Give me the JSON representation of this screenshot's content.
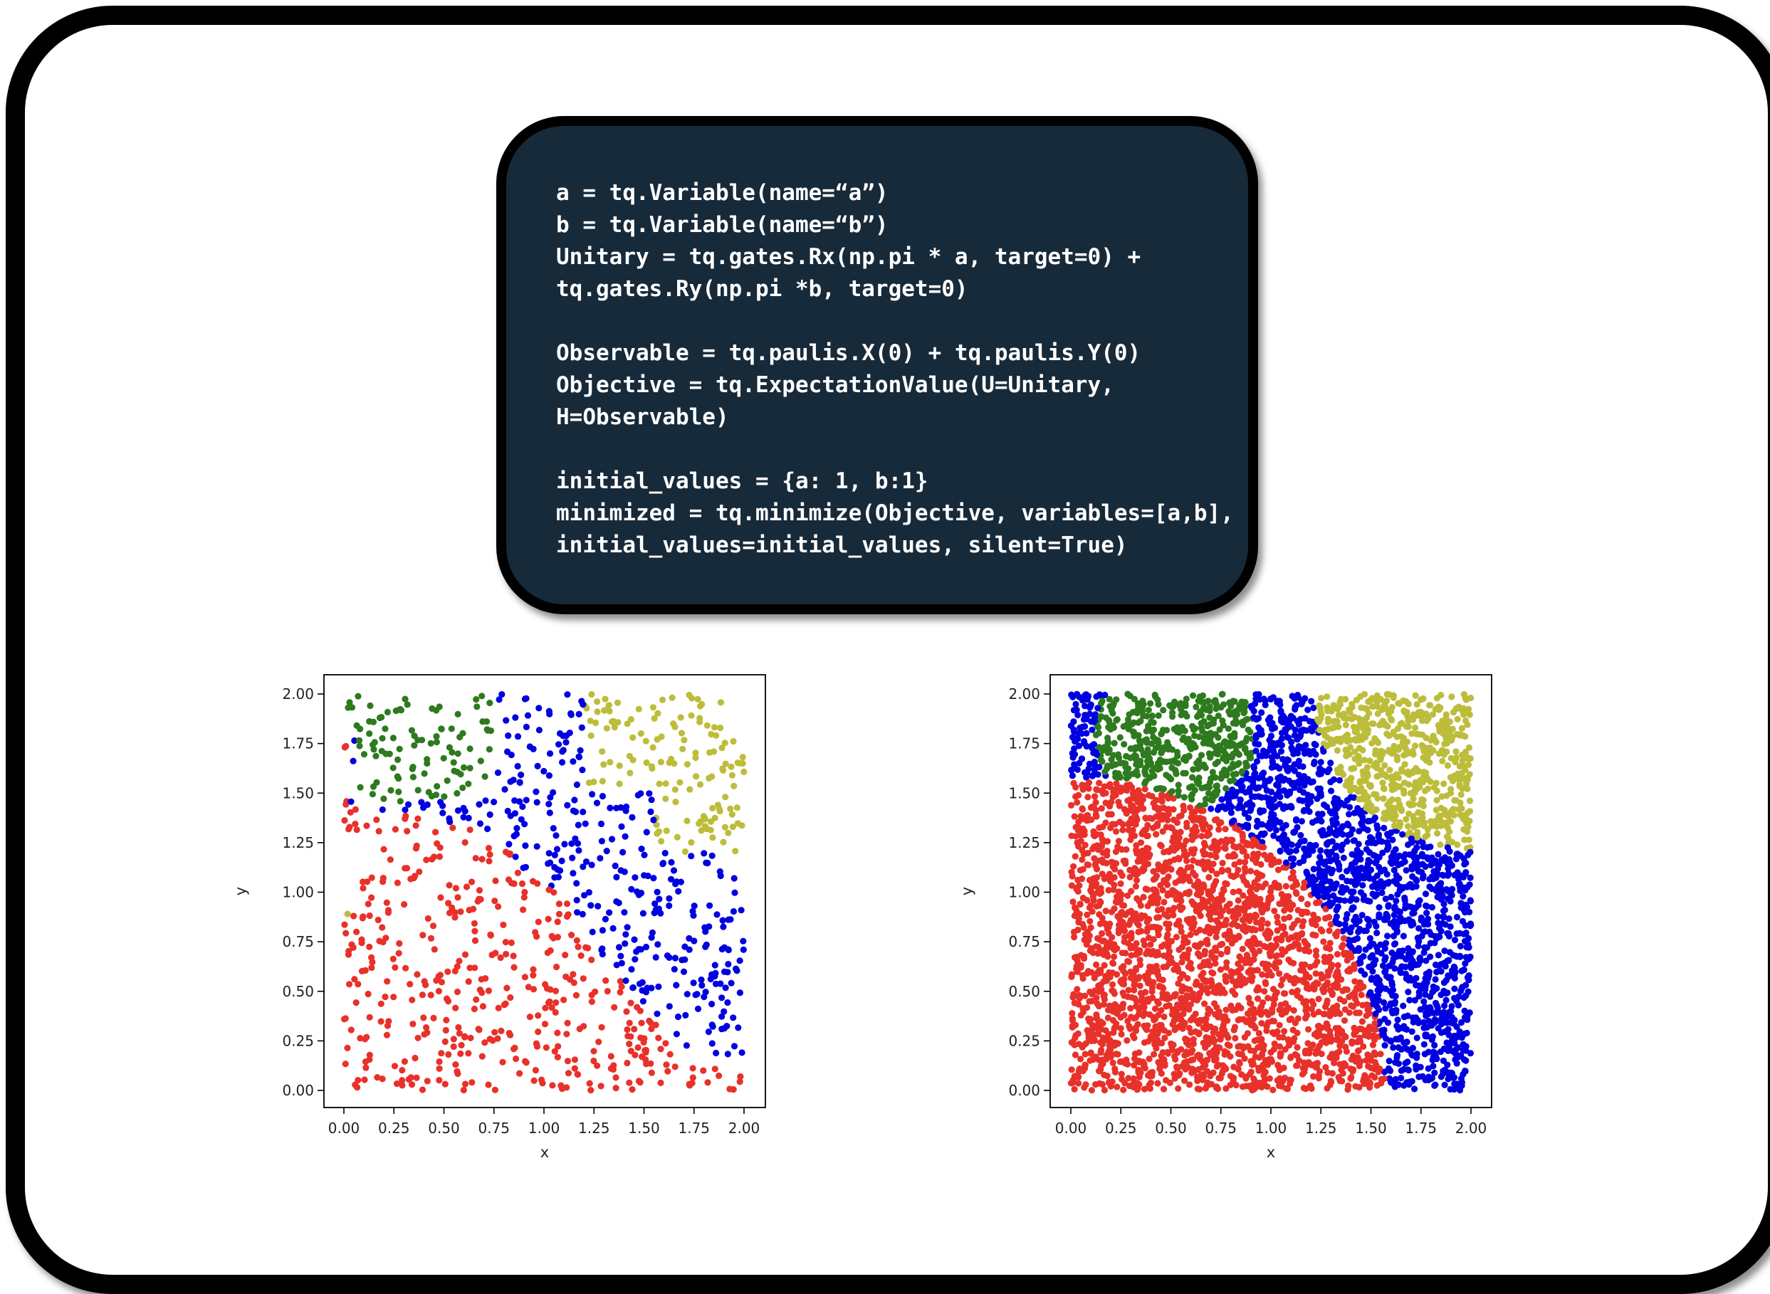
{
  "code": {
    "lines": [
      "a = tq.Variable(name=“a”)",
      "b = tq.Variable(name=“b”)",
      "Unitary = tq.gates.Rx(np.pi * a, target=0) +",
      "tq.gates.Ry(np.pi *b, target=0)",
      "",
      "Observable = tq.paulis.X(0) + tq.paulis.Y(0)",
      "Objective = tq.ExpectationValue(U=Unitary,",
      "H=Observable)",
      "",
      "initial_values = {a: 1, b:1}",
      "minimized = tq.minimize(Objective, variables=[a,b],",
      "initial_values=initial_values, silent=True)"
    ]
  },
  "colors": {
    "red": "#e8312a",
    "blue": "#0000e0",
    "green": "#2e7a1e",
    "olive": "#bdbd3c",
    "code_background": "#172a3a"
  },
  "chart_data": [
    {
      "type": "scatter",
      "xlabel": "x",
      "ylabel": "y",
      "xlim": [
        0,
        2
      ],
      "ylim": [
        0,
        2
      ],
      "xticks": [
        "0.00",
        "0.25",
        "0.50",
        "0.75",
        "1.00",
        "1.25",
        "1.50",
        "1.75",
        "2.00"
      ],
      "yticks": [
        "0.00",
        "0.25",
        "0.50",
        "0.75",
        "1.00",
        "1.25",
        "1.50",
        "1.75",
        "2.00"
      ],
      "point_count": 1000,
      "classes": [
        {
          "color": "red",
          "region": "lower-left, roughly x+y<2 bounded by boundary through (0.75,1.30),(1.10,1.00),(1.25,0.75),(1.50,0.35)"
        },
        {
          "color": "green",
          "region": "top-left, x 0.00–0.75, y 1.45–2.00"
        },
        {
          "color": "blue",
          "region": "central band to right edge"
        },
        {
          "color": "olive",
          "region": "top-right, x>1.20, y>1.20 (plus a few points at x≈0, y≈0.95)"
        }
      ]
    },
    {
      "type": "scatter",
      "xlabel": "x",
      "ylabel": "y",
      "xlim": [
        0,
        2
      ],
      "ylim": [
        0,
        2
      ],
      "xticks": [
        "0.00",
        "0.25",
        "0.50",
        "0.75",
        "1.00",
        "1.25",
        "1.50",
        "1.75",
        "2.00"
      ],
      "yticks": [
        "0.00",
        "0.25",
        "0.50",
        "0.75",
        "1.00",
        "1.25",
        "1.50",
        "1.75",
        "2.00"
      ],
      "point_count": 5000,
      "classes": [
        {
          "color": "red",
          "region": "quarter disc centered at origin, radius ≈1.57"
        },
        {
          "color": "green",
          "region": "disc centered (0.52, 1.80), radius ≈0.40"
        },
        {
          "color": "olive",
          "region": "disc centered (2.00, 2.00), radius ≈0.78"
        },
        {
          "color": "blue",
          "region": "remaining area"
        }
      ]
    }
  ]
}
